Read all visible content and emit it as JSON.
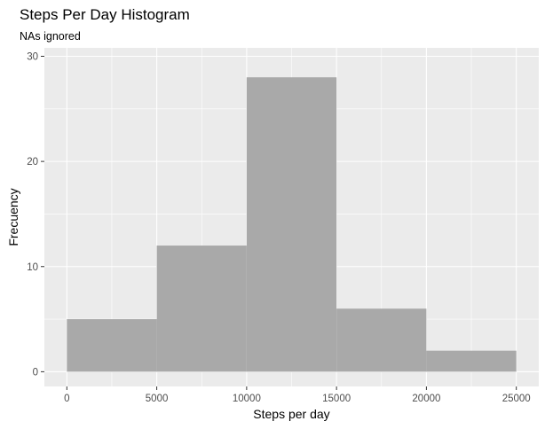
{
  "chart_data": {
    "type": "bar",
    "title": "Steps Per Day Histogram",
    "subtitle": "NAs ignored",
    "xlabel": "Steps per day",
    "ylabel": "Frecuency",
    "bins": [
      {
        "x_start": 0,
        "x_end": 5000,
        "count": 5
      },
      {
        "x_start": 5000,
        "x_end": 10000,
        "count": 12
      },
      {
        "x_start": 10000,
        "x_end": 15000,
        "count": 28
      },
      {
        "x_start": 15000,
        "x_end": 20000,
        "count": 6
      },
      {
        "x_start": 20000,
        "x_end": 25000,
        "count": 2
      }
    ],
    "xlim": [
      -1250,
      26250
    ],
    "ylim": [
      -1.4,
      30.8
    ],
    "x_ticks": [
      0,
      5000,
      10000,
      15000,
      20000,
      25000
    ],
    "x_tick_labels": [
      "0",
      "5000",
      "10000",
      "15000",
      "20000",
      "25000"
    ],
    "y_ticks": [
      0,
      10,
      20,
      30
    ],
    "y_tick_labels": [
      "0",
      "10",
      "20",
      "30"
    ],
    "grid": true,
    "bar_color": "#a9a9a9",
    "panel_background": "#ebebeb",
    "grid_color": "#ffffff"
  }
}
